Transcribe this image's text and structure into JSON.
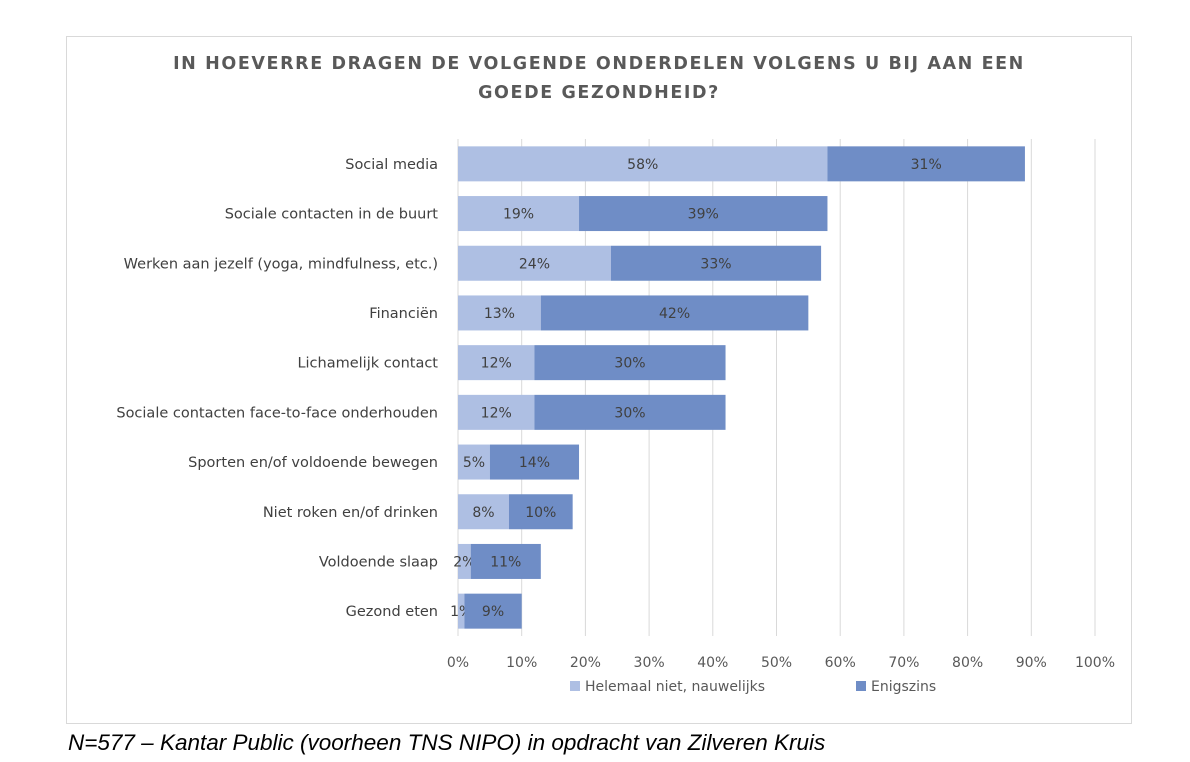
{
  "chart_data": {
    "type": "bar",
    "orientation": "horizontal",
    "stacked": true,
    "title": "IN HOEVERRE DRAGEN DE VOLGENDE ONDERDELEN VOLGENS U BIJ AAN EEN GOEDE GEZONDHEID?",
    "title_lines": [
      "IN HOEVERRE DRAGEN DE VOLGENDE ONDERDELEN VOLGENS U BIJ AAN EEN",
      "GOEDE GEZONDHEID?"
    ],
    "categories": [
      "Social media",
      "Sociale contacten in de buurt",
      "Werken aan jezelf (yoga, mindfulness, etc.)",
      "Financiën",
      "Lichamelijk contact",
      "Sociale contacten face-to-face onderhouden",
      "Sporten en/of voldoende bewegen",
      "Niet roken en/of drinken",
      "Voldoende slaap",
      "Gezond eten"
    ],
    "series": [
      {
        "name": "Helemaal niet, nauwelijks",
        "values": [
          58,
          19,
          24,
          13,
          12,
          12,
          5,
          8,
          2,
          1
        ],
        "labels": [
          "58%",
          "19%",
          "24%",
          "13%",
          "12%",
          "12%",
          "5%",
          "8%",
          "2%",
          "1%"
        ]
      },
      {
        "name": "Enigszins",
        "values": [
          31,
          39,
          33,
          42,
          30,
          30,
          14,
          10,
          11,
          9
        ],
        "labels": [
          "31%",
          "39%",
          "33%",
          "42%",
          "30%",
          "30%",
          "14%",
          "10%",
          "11%",
          "9%"
        ]
      }
    ],
    "xlim": [
      0,
      100
    ],
    "xticks": [
      "0%",
      "10%",
      "20%",
      "30%",
      "40%",
      "50%",
      "60%",
      "70%",
      "80%",
      "90%",
      "100%"
    ],
    "grid": true,
    "legend_position": "bottom",
    "colors": [
      "#aebfe3",
      "#6f8dc6"
    ]
  },
  "caption": "N=577 – Kantar Public (voorheen TNS NIPO) in opdracht van Zilveren Kruis"
}
